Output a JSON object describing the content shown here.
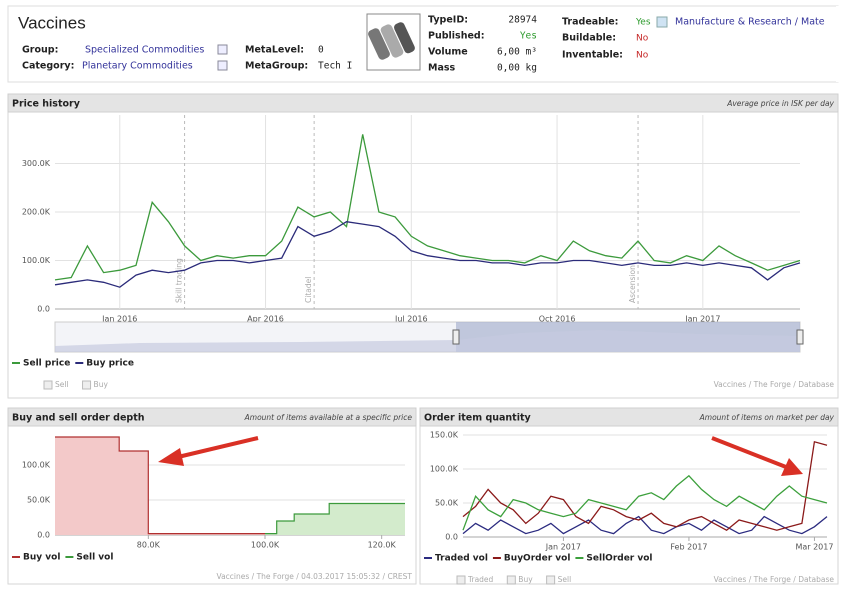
{
  "header": {
    "title": "Vaccines",
    "group_label": "Group:",
    "group": "Specialized Commodities",
    "category_label": "Category:",
    "category": "Planetary Commodities",
    "metalevel_label": "MetaLevel:",
    "metalevel": "0",
    "metagroup_label": "MetaGroup:",
    "metagroup": "Tech I",
    "typeid_label": "TypeID:",
    "typeid": "28974",
    "published_label": "Published:",
    "published": "Yes",
    "volume_label": "Volume",
    "volume": "6,00 m³",
    "mass_label": "Mass",
    "mass": "0,00 kg",
    "tradeable_label": "Tradeable:",
    "tradeable": "Yes",
    "manufacture": "Manufacture & Research / Mate",
    "buildable_label": "Buildable:",
    "buildable": "No",
    "inventable_label": "Inventable:",
    "inventable": "No"
  },
  "price_history": {
    "title": "Price history",
    "subtitle": "Average price in ISK per day",
    "toggles": [
      "Sell",
      "Buy"
    ],
    "footer": "Vaccines / The Forge / Database",
    "chart": {
      "type": "line",
      "grid": true,
      "x_grid": true,
      "categories": [
        null,
        null,
        null,
        null,
        "Jan 2016",
        null,
        null,
        null,
        null,
        null,
        null,
        null,
        null,
        "Apr 2016",
        null,
        null,
        null,
        null,
        null,
        null,
        null,
        null,
        "Jul 2016",
        null,
        null,
        null,
        null,
        null,
        null,
        null,
        null,
        "Oct 2016",
        null,
        null,
        null,
        null,
        null,
        null,
        null,
        null,
        "Jan 2017",
        null,
        null,
        null,
        null,
        null,
        null
      ],
      "ylim": [
        0,
        400000
      ],
      "yticks": [
        {
          "value": 0,
          "label": "0.0"
        },
        {
          "value": 100000,
          "label": "100.0K"
        },
        {
          "value": 200000,
          "label": "200.0K"
        },
        {
          "value": 300000,
          "label": "300.0K"
        }
      ],
      "annotations": [
        {
          "label": "Skill trading",
          "at": 8
        },
        {
          "label": "Citadel",
          "at": 16
        },
        {
          "label": "Ascension",
          "at": 36
        }
      ],
      "series": [
        {
          "name": "Sell price",
          "color": "#3c9a3c",
          "values": [
            60000,
            65000,
            130000,
            75000,
            80000,
            90000,
            220000,
            180000,
            130000,
            100000,
            110000,
            105000,
            110000,
            110000,
            140000,
            210000,
            190000,
            200000,
            170000,
            360000,
            200000,
            190000,
            150000,
            130000,
            120000,
            110000,
            105000,
            100000,
            100000,
            95000,
            110000,
            100000,
            140000,
            120000,
            110000,
            105000,
            140000,
            100000,
            95000,
            110000,
            100000,
            130000,
            110000,
            95000,
            80000,
            90000,
            100000
          ]
        },
        {
          "name": "Buy price",
          "color": "#2b2b7a",
          "values": [
            50000,
            55000,
            60000,
            55000,
            45000,
            70000,
            80000,
            75000,
            80000,
            95000,
            100000,
            100000,
            95000,
            100000,
            105000,
            170000,
            150000,
            160000,
            180000,
            175000,
            170000,
            150000,
            120000,
            110000,
            105000,
            100000,
            100000,
            95000,
            95000,
            90000,
            95000,
            95000,
            100000,
            100000,
            95000,
            90000,
            95000,
            90000,
            90000,
            95000,
            90000,
            95000,
            90000,
            85000,
            60000,
            85000,
            95000
          ]
        }
      ]
    }
  },
  "order_depth": {
    "title": "Buy and sell order depth",
    "subtitle": "Amount of items available at a specific price",
    "footer": "Vaccines / The Forge / 04.03.2017 15:05:32 / CREST",
    "chart": {
      "type": "step-area",
      "grid": true,
      "xlim": [
        64000,
        124000
      ],
      "xticks": [
        {
          "value": 80000,
          "label": "80.0K"
        },
        {
          "value": 100000,
          "label": "100.0K"
        },
        {
          "value": 120000,
          "label": "120.0K"
        }
      ],
      "ylim": [
        0,
        140000
      ],
      "yticks": [
        {
          "value": 0,
          "label": "0.0"
        },
        {
          "value": 50000,
          "label": "50.0K"
        },
        {
          "value": 100000,
          "label": "100.0K"
        }
      ],
      "series": [
        {
          "name": "Buy vol",
          "color": "#b03030",
          "fill": "#f3c9c9",
          "x": [
            64000,
            75000,
            80000,
            100000
          ],
          "values": [
            140000,
            120000,
            2000,
            2000
          ]
        },
        {
          "name": "Sell vol",
          "color": "#3c9a3c",
          "fill": "#d3ebcc",
          "x": [
            100000,
            102000,
            105000,
            111000,
            124000
          ],
          "values": [
            2000,
            20000,
            30000,
            45000,
            45000
          ]
        }
      ]
    }
  },
  "order_quantity": {
    "title": "Order item quantity",
    "subtitle": "Amount of items on market per day",
    "toggles": [
      "Traded",
      "Buy",
      "Sell"
    ],
    "footer": "Vaccines / The Forge / Database",
    "chart": {
      "type": "line",
      "grid": true,
      "x_grid": false,
      "categories": [
        null,
        null,
        null,
        null,
        null,
        null,
        null,
        null,
        "Jan 2017",
        null,
        null,
        null,
        null,
        null,
        null,
        null,
        null,
        null,
        "Feb 2017",
        null,
        null,
        null,
        null,
        null,
        null,
        null,
        null,
        null,
        "Mar 2017",
        null
      ],
      "ylim": [
        0,
        150000
      ],
      "yticks": [
        {
          "value": 0,
          "label": "0.0"
        },
        {
          "value": 50000,
          "label": "50.0K"
        },
        {
          "value": 100000,
          "label": "100.0K"
        },
        {
          "value": 150000,
          "label": "150.0K"
        }
      ],
      "series": [
        {
          "name": "Traded vol",
          "color": "#2b2b80",
          "values": [
            5000,
            20000,
            10000,
            25000,
            15000,
            5000,
            10000,
            20000,
            5000,
            15000,
            25000,
            10000,
            5000,
            20000,
            30000,
            10000,
            5000,
            15000,
            20000,
            10000,
            25000,
            15000,
            5000,
            10000,
            30000,
            20000,
            10000,
            5000,
            15000,
            30000
          ]
        },
        {
          "name": "BuyOrder vol",
          "color": "#8b1a1a",
          "values": [
            30000,
            45000,
            70000,
            50000,
            40000,
            20000,
            35000,
            60000,
            55000,
            30000,
            20000,
            45000,
            40000,
            30000,
            25000,
            35000,
            20000,
            15000,
            25000,
            30000,
            20000,
            10000,
            25000,
            20000,
            15000,
            10000,
            15000,
            20000,
            140000,
            135000
          ]
        },
        {
          "name": "SellOrder vol",
          "color": "#3ca03c",
          "values": [
            10000,
            60000,
            40000,
            30000,
            55000,
            50000,
            40000,
            35000,
            30000,
            35000,
            55000,
            50000,
            45000,
            40000,
            60000,
            65000,
            55000,
            75000,
            90000,
            70000,
            55000,
            45000,
            60000,
            50000,
            40000,
            60000,
            75000,
            60000,
            55000,
            50000
          ]
        }
      ]
    }
  }
}
